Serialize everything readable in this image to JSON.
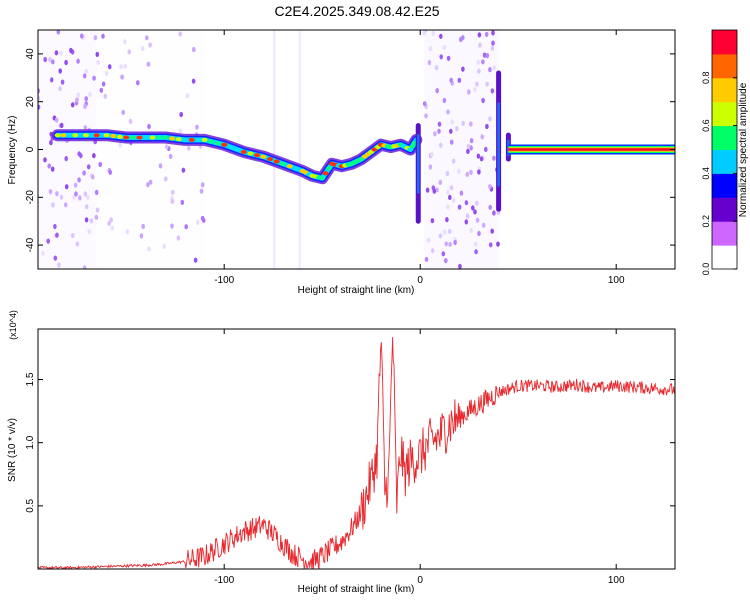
{
  "figure": {
    "title": "C2E4.2025.349.08.42.E25"
  },
  "chart_data": [
    {
      "type": "heatmap",
      "xlabel": "Height of straight line (km)",
      "ylabel": "Frequency (Hz)",
      "xlim": [
        -195,
        130
      ],
      "ylim": [
        -50,
        50
      ],
      "xticks": [
        -100,
        0,
        100
      ],
      "yticks": [
        -40,
        -20,
        0,
        20,
        40
      ],
      "grid": false,
      "colorbar": {
        "label": "Normalized spectral amplitude",
        "range": [
          0,
          1
        ],
        "ticks": [
          "0.0",
          "0.2",
          "0.4",
          "0.6",
          "0.8"
        ],
        "colors": [
          "#ffffff",
          "#cc66ff",
          "#6600cc",
          "#0000ff",
          "#00ccff",
          "#00ff66",
          "#ccff00",
          "#ffcc00",
          "#ff6600",
          "#ff0033"
        ]
      },
      "ridge": {
        "x": [
          -185,
          -176,
          -160,
          -150,
          -140,
          -130,
          -120,
          -110,
          -100,
          -90,
          -80,
          -70,
          -60,
          -55,
          -50,
          -45,
          -40,
          -35,
          -30,
          -25,
          -20,
          -15,
          -10,
          -5,
          -2
        ],
        "y": [
          6,
          6,
          6,
          5,
          5,
          5,
          4,
          4,
          2,
          -1,
          -3,
          -6,
          -9,
          -11,
          -12,
          -6,
          -7,
          -6,
          -4,
          -1,
          2,
          1,
          2,
          0,
          4
        ]
      },
      "line_segment": {
        "x": [
          45,
          130
        ],
        "y": [
          0,
          0
        ],
        "amplitude": 1.0
      },
      "noise_bands": [
        {
          "x": [
            -195,
            -165
          ],
          "density": 0.8
        },
        {
          "x": [
            -165,
            -110
          ],
          "density": 0.35
        },
        {
          "x": [
            2,
            40
          ],
          "density": 0.9
        }
      ],
      "spikes": [
        {
          "x": -1,
          "y": [
            -30,
            10
          ]
        },
        {
          "x": 40,
          "y": [
            -25,
            32
          ]
        },
        {
          "x": 45,
          "y": [
            -4,
            6
          ]
        }
      ]
    },
    {
      "type": "line",
      "xlabel": "Height of straight line (km)",
      "ylabel": "SNR (10 * v/v)",
      "y_multiplier": "(x10^4)",
      "xlim": [
        -195,
        130
      ],
      "ylim": [
        0,
        1.9
      ],
      "xticks": [
        -100,
        0,
        100
      ],
      "yticks": [
        0.5,
        1.0,
        1.5
      ],
      "ytick_labels": [
        "0.5",
        "1.0",
        "1.5"
      ],
      "grid": false,
      "color": "#e8282d",
      "x": [
        -195,
        -180,
        -160,
        -140,
        -130,
        -120,
        -110,
        -105,
        -100,
        -95,
        -90,
        -85,
        -80,
        -75,
        -70,
        -65,
        -60,
        -55,
        -50,
        -45,
        -40,
        -35,
        -30,
        -28,
        -25,
        -22,
        -20,
        -18,
        -16,
        -14,
        -12,
        -10,
        -8,
        -5,
        0,
        5,
        10,
        15,
        20,
        25,
        30,
        35,
        40,
        50,
        60,
        70,
        80,
        90,
        100,
        110,
        120,
        130
      ],
      "y": [
        0.01,
        0.01,
        0.02,
        0.03,
        0.04,
        0.06,
        0.1,
        0.15,
        0.2,
        0.25,
        0.3,
        0.32,
        0.35,
        0.28,
        0.2,
        0.12,
        0.08,
        0.06,
        0.1,
        0.16,
        0.22,
        0.32,
        0.45,
        0.55,
        0.7,
        0.9,
        1.85,
        0.6,
        0.75,
        1.9,
        0.5,
        0.95,
        0.75,
        0.85,
        0.9,
        1.0,
        1.05,
        1.15,
        1.2,
        1.25,
        1.3,
        1.35,
        1.4,
        1.45,
        1.45,
        1.44,
        1.46,
        1.43,
        1.45,
        1.44,
        1.43,
        1.42
      ]
    }
  ]
}
